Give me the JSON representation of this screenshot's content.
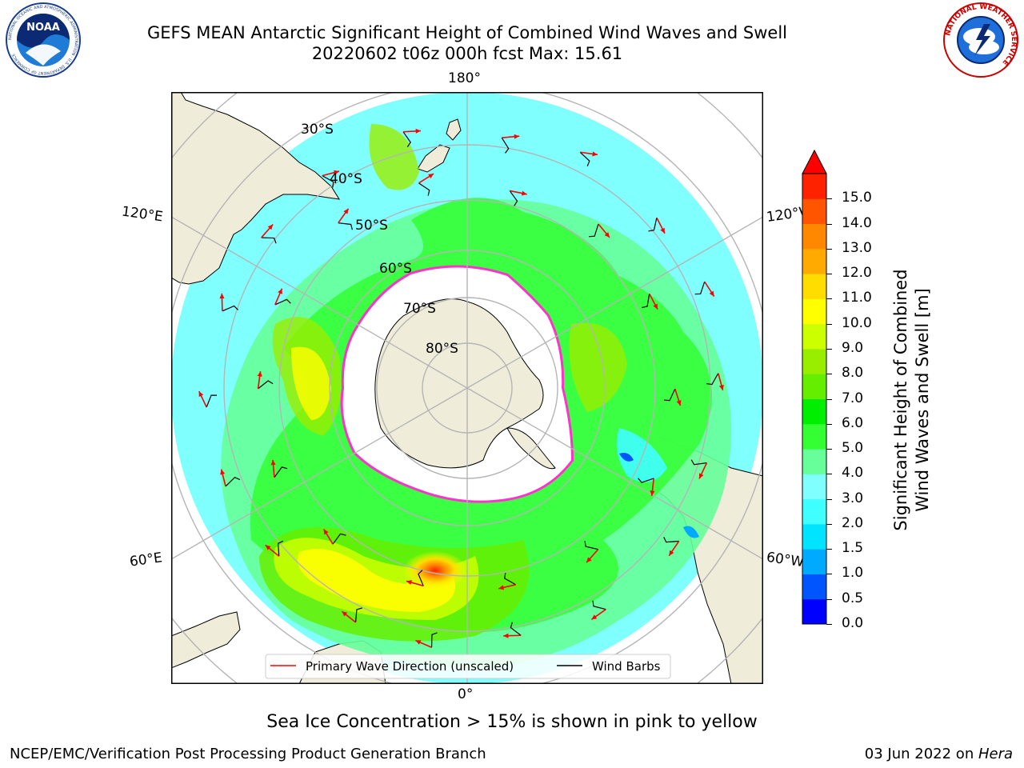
{
  "title": {
    "line1": "GEFS MEAN Antarctic Significant Height of Combined Wind Waves and Swell",
    "line2": "20220602 t06z 000h fcst   Max: 15.61"
  },
  "map": {
    "projection": "south-polar-stereographic",
    "longitude_labels": {
      "top": "180°",
      "bottom": "0°",
      "left_upper": "120°E",
      "right_upper": "120°W",
      "left_lower": "60°E",
      "right_lower": "60°W"
    },
    "latitude_labels": [
      "30°S",
      "40°S",
      "50°S",
      "60°S",
      "70°S",
      "80°S"
    ],
    "legend": {
      "wave_direction": "Primary Wave Direction (unscaled)",
      "wind_barbs": "Wind Barbs"
    },
    "colors": {
      "ocean": "#80ffff",
      "land": "#efecda",
      "ice": "#ffffff",
      "ice_edge": "#ff33cc",
      "grid": "#b5b5b5",
      "arrow": "#ff0000"
    }
  },
  "colorbar": {
    "label_line1": "Significant Height of Combined",
    "label_line2": "Wind Waves and Swell [m]",
    "ticks": [
      "0.0",
      "0.5",
      "1.0",
      "1.5",
      "2.0",
      "3.0",
      "4.0",
      "5.0",
      "6.0",
      "7.0",
      "8.0",
      "9.0",
      "10.0",
      "11.0",
      "12.0",
      "13.0",
      "14.0",
      "15.0"
    ],
    "colors": [
      "#0000ff",
      "#0055ff",
      "#00aaff",
      "#00e4ff",
      "#40ffff",
      "#7fffff",
      "#66ff99",
      "#33ff33",
      "#00ee00",
      "#66ee00",
      "#99ee00",
      "#ccff00",
      "#ffff00",
      "#ffdd00",
      "#ffaa00",
      "#ff8800",
      "#ff5500",
      "#ff2200"
    ],
    "extend_color": "#ff0000"
  },
  "sea_ice_note": "Sea Ice Concentration > 15% is shown in pink to yellow",
  "footer": {
    "left": "NCEP/EMC/Verification Post Processing Product Generation Branch",
    "right_prefix": "03 Jun 2022 on ",
    "right_machine": "Hera"
  },
  "logos": {
    "noaa": {
      "name": "NOAA",
      "ring_text": "NATIONAL OCEANIC AND ATMOSPHERIC ADMINISTRATION · U.S. DEPARTMENT OF COMMERCE"
    },
    "nws": {
      "ring_text": "NATIONAL WEATHER SERVICE"
    }
  }
}
